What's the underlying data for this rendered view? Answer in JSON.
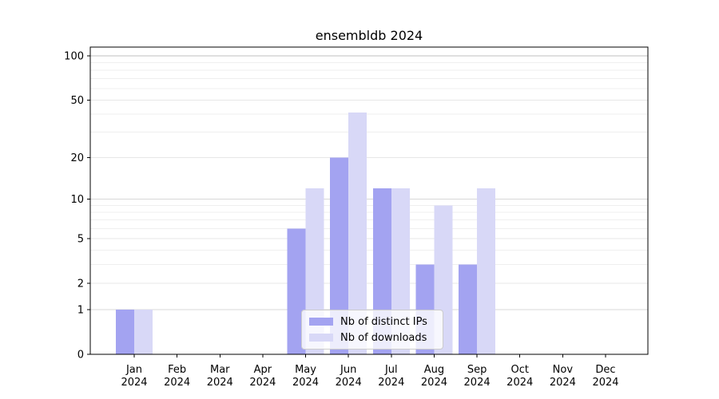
{
  "chart_data": {
    "type": "bar",
    "title": "ensembldb 2024",
    "categories": [
      "Jan",
      "Feb",
      "Mar",
      "Apr",
      "May",
      "Jun",
      "Jul",
      "Aug",
      "Sep",
      "Oct",
      "Nov",
      "Dec"
    ],
    "x_tick_second_line": "2024",
    "series": [
      {
        "name": "Nb of distinct IPs",
        "color": "#a3a3f1",
        "values": [
          1,
          0,
          0,
          0,
          6,
          20,
          12,
          3,
          3,
          0,
          0,
          0
        ]
      },
      {
        "name": "Nb of downloads",
        "color": "#d8d8f7",
        "values": [
          1,
          0,
          0,
          0,
          12,
          41,
          12,
          9,
          12,
          0,
          0,
          0
        ]
      }
    ],
    "y_scale": "log1p",
    "y_ticks": [
      0,
      1,
      2,
      5,
      10,
      20,
      50,
      100
    ],
    "y_minor_gridlines": [
      3,
      4,
      6,
      7,
      8,
      9,
      30,
      40,
      60,
      70,
      80,
      90
    ],
    "ylim": [
      0,
      115
    ],
    "xlabel": "",
    "ylabel": "",
    "grid": true,
    "legend": {
      "position": "lower center"
    }
  }
}
